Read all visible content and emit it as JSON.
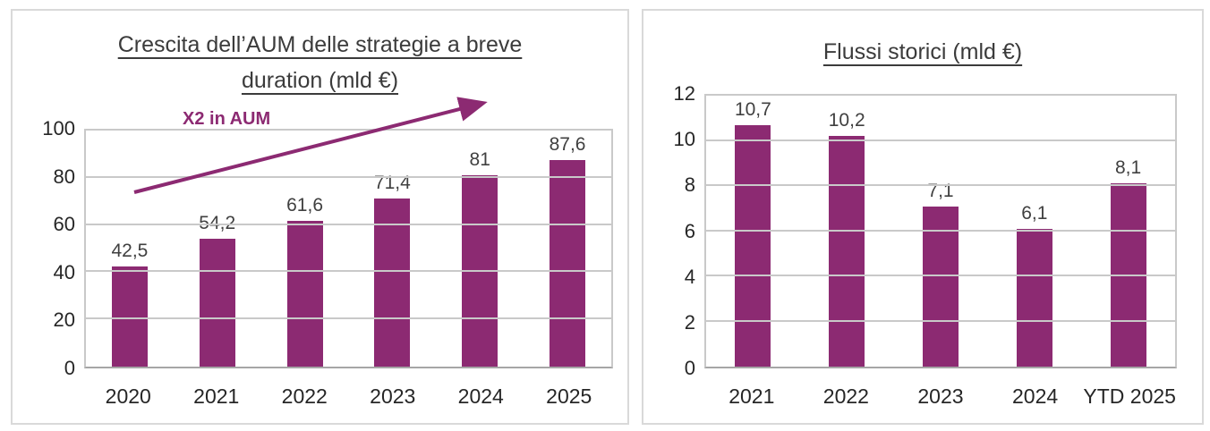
{
  "colors": {
    "bar": "#8C2A72",
    "annotation": "#8C2A72",
    "gridline": "#C9C9C9",
    "plot_border": "#BFBFBF",
    "axis_line": "#A6A6A6",
    "panel_border": "#D9D9D9",
    "title_text": "#3B3B3B",
    "tick_text": "#262626",
    "value_text": "#404040"
  },
  "chart_data": [
    {
      "type": "bar",
      "title": "Crescita dell’AUM delle strategie a breve duration (mld €)",
      "title_lines": [
        "Crescita dell’AUM delle strategie a breve",
        "duration (mld €)"
      ],
      "categories": [
        "2020",
        "2021",
        "2022",
        "2023",
        "2024",
        "2025"
      ],
      "values": [
        42.5,
        54.2,
        61.6,
        71.4,
        81,
        87.6
      ],
      "value_labels": [
        "42,5",
        "54,2",
        "61,6",
        "71,4",
        "81",
        "87,6"
      ],
      "xlabel": "",
      "ylabel": "",
      "ylim": [
        0,
        100
      ],
      "yticks": [
        0,
        20,
        40,
        60,
        80,
        100
      ],
      "grid": true,
      "legend_position": "none",
      "bar_color": "#8C2A72",
      "annotation": {
        "text": "X2 in AUM",
        "style": "arrow-up-right"
      }
    },
    {
      "type": "bar",
      "title": "Flussi storici (mld €)",
      "title_lines": [
        "Flussi storici (mld €)"
      ],
      "categories": [
        "2021",
        "2022",
        "2023",
        "2024",
        "YTD 2025"
      ],
      "values": [
        10.7,
        10.2,
        7.1,
        6.1,
        8.1
      ],
      "value_labels": [
        "10,7",
        "10,2",
        "7,1",
        "6,1",
        "8,1"
      ],
      "xlabel": "",
      "ylabel": "",
      "ylim": [
        0,
        12
      ],
      "yticks": [
        0,
        2,
        4,
        6,
        8,
        10,
        12
      ],
      "grid": true,
      "legend_position": "none",
      "bar_color": "#8C2A72"
    }
  ]
}
